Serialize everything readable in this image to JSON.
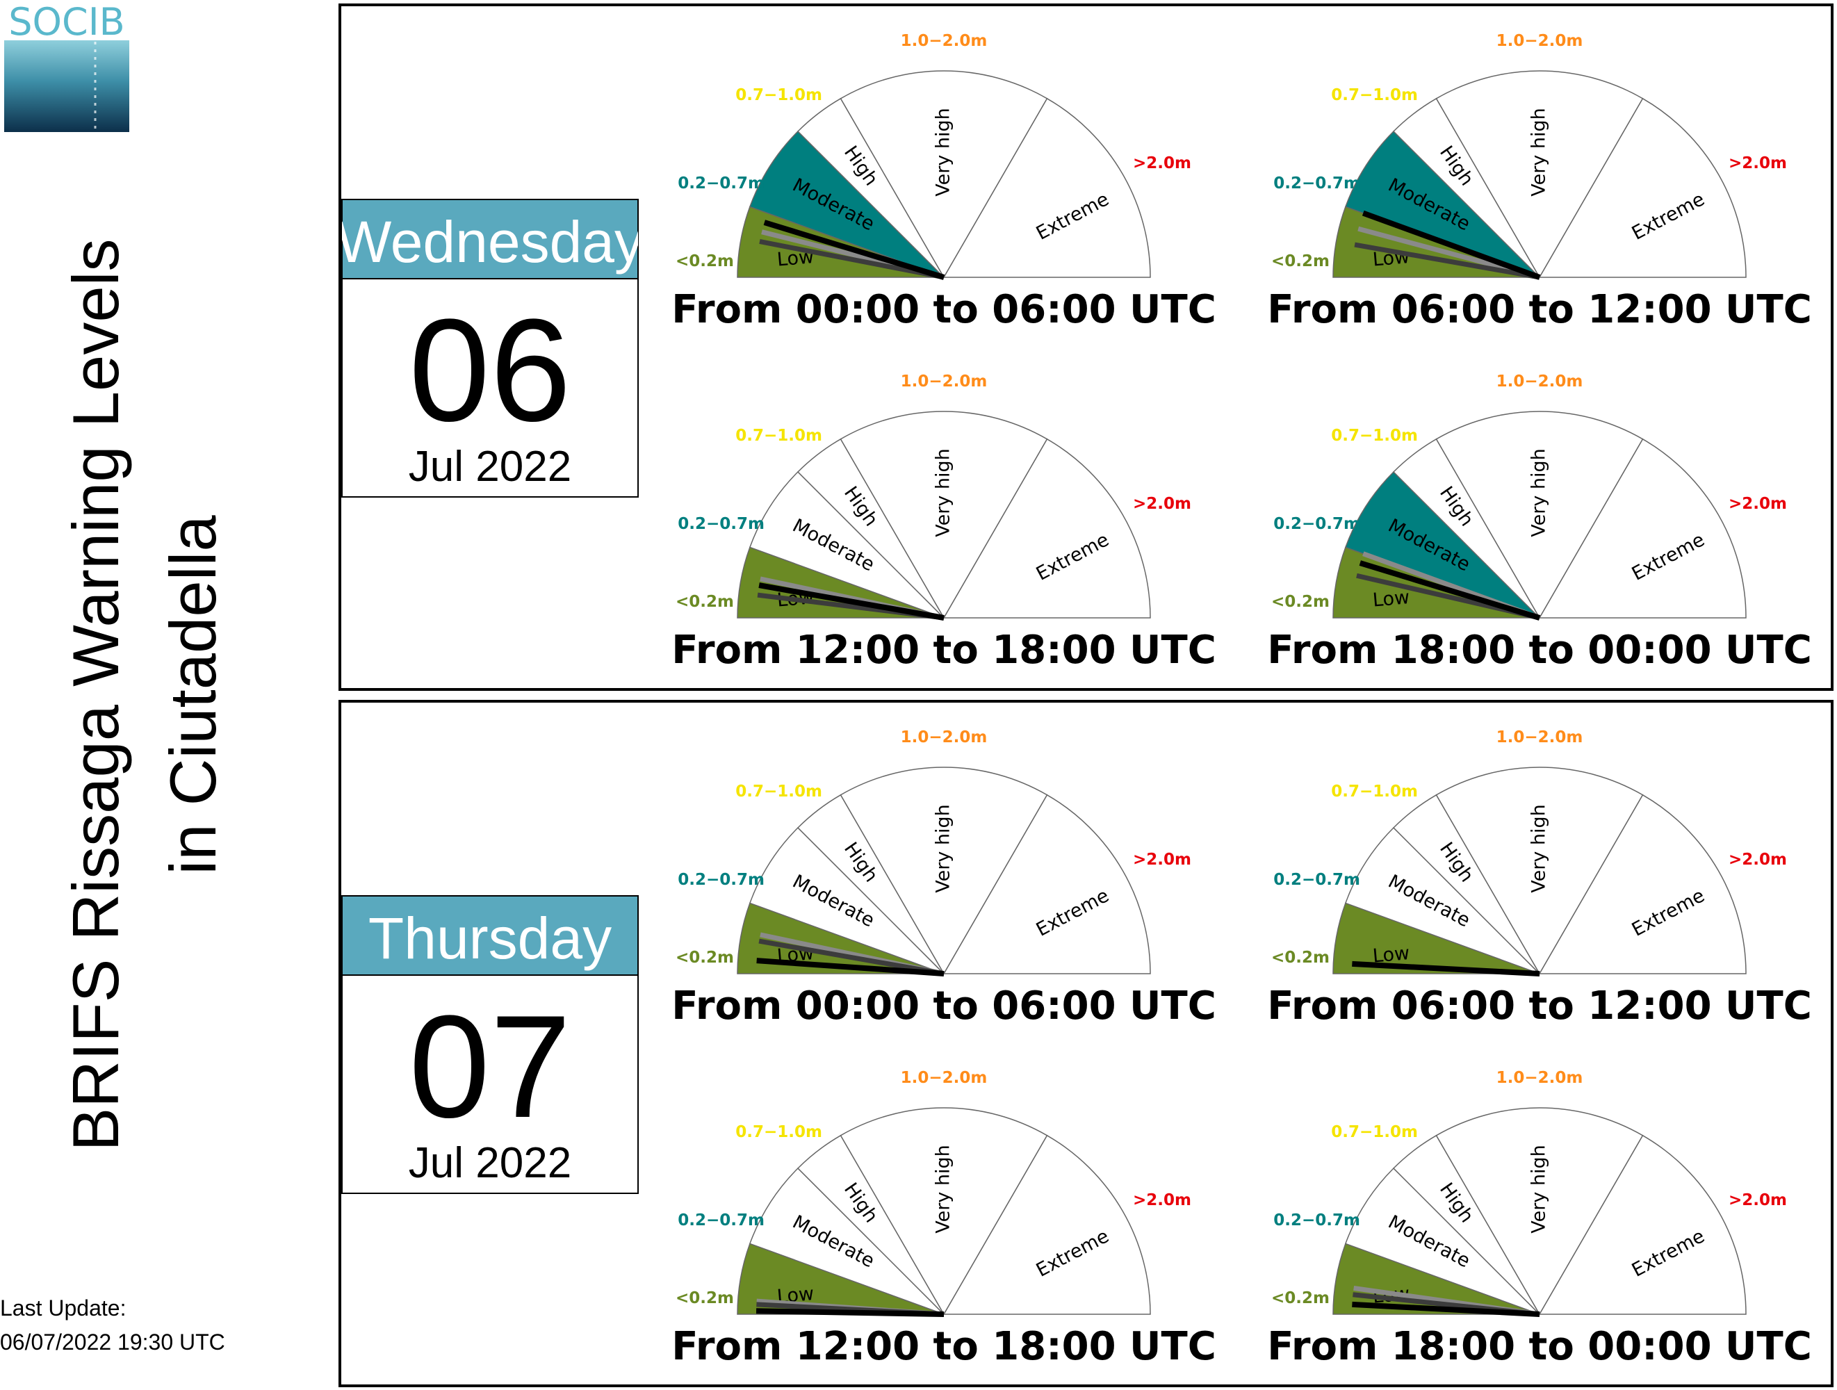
{
  "logo": {
    "text": "SOCIB"
  },
  "title": {
    "line1": "BRIFS Rissaga Warning Levels",
    "line2": "in Ciutadella"
  },
  "last_update": {
    "label": "Last Update:",
    "value": "06/07/2022 19:30 UTC"
  },
  "colors": {
    "low": "#6b8a24",
    "moderate": "#007f7f",
    "high": "#f5e400",
    "very_high": "#ff8c1a",
    "extreme": "#e8000b",
    "day_header": "#5aa9be"
  },
  "gauge_labels": {
    "zones": [
      "Low",
      "Moderate",
      "High",
      "Very high",
      "Extreme"
    ],
    "thresholds": [
      "<0.2m",
      "0.2−0.7m",
      "0.7−1.0m",
      "1.0−2.0m",
      ">2.0m"
    ]
  },
  "chart_data": [
    {
      "type": "gauge",
      "weekday": "Wednesday",
      "day": "06",
      "month": "Jul 2022",
      "periods": [
        {
          "label": "From 00:00 to 06:00 UTC",
          "level": "Moderate",
          "needles": [
            {
              "shade": "gray",
              "angle": 14
            },
            {
              "shade": "dark",
              "angle": 11
            },
            {
              "shade": "black",
              "angle": 17
            }
          ]
        },
        {
          "label": "From 06:00 to 12:00 UTC",
          "level": "Moderate",
          "needles": [
            {
              "shade": "gray",
              "angle": 15
            },
            {
              "shade": "dark",
              "angle": 10
            },
            {
              "shade": "black",
              "angle": 20
            }
          ]
        },
        {
          "label": "From 12:00 to 18:00 UTC",
          "level": "Low",
          "needles": [
            {
              "shade": "gray",
              "angle": 12
            },
            {
              "shade": "dark",
              "angle": 7
            },
            {
              "shade": "black",
              "angle": 10
            }
          ]
        },
        {
          "label": "From 18:00 to 00:00 UTC",
          "level": "Moderate",
          "needles": [
            {
              "shade": "gray",
              "angle": 20
            },
            {
              "shade": "dark",
              "angle": 13
            },
            {
              "shade": "black",
              "angle": 17
            }
          ]
        }
      ]
    },
    {
      "type": "gauge",
      "weekday": "Thursday",
      "day": "07",
      "month": "Jul 2022",
      "periods": [
        {
          "label": "From 00:00 to 06:00 UTC",
          "level": "Low",
          "needles": [
            {
              "shade": "gray",
              "angle": 12
            },
            {
              "shade": "dark",
              "angle": 10
            },
            {
              "shade": "black",
              "angle": 4
            }
          ]
        },
        {
          "label": "From 06:00 to 12:00 UTC",
          "level": "Low",
          "needles": [
            {
              "shade": "gray",
              "angle": 3
            },
            {
              "shade": "dark",
              "angle": 3
            },
            {
              "shade": "black",
              "angle": 3
            }
          ]
        },
        {
          "label": "From 12:00 to 18:00 UTC",
          "level": "Low",
          "needles": [
            {
              "shade": "gray",
              "angle": 4
            },
            {
              "shade": "dark",
              "angle": 3
            },
            {
              "shade": "black",
              "angle": 1
            }
          ]
        },
        {
          "label": "From 18:00 to 00:00 UTC",
          "level": "Low",
          "needles": [
            {
              "shade": "gray",
              "angle": 8
            },
            {
              "shade": "dark",
              "angle": 6
            },
            {
              "shade": "black",
              "angle": 3
            }
          ]
        }
      ]
    }
  ]
}
